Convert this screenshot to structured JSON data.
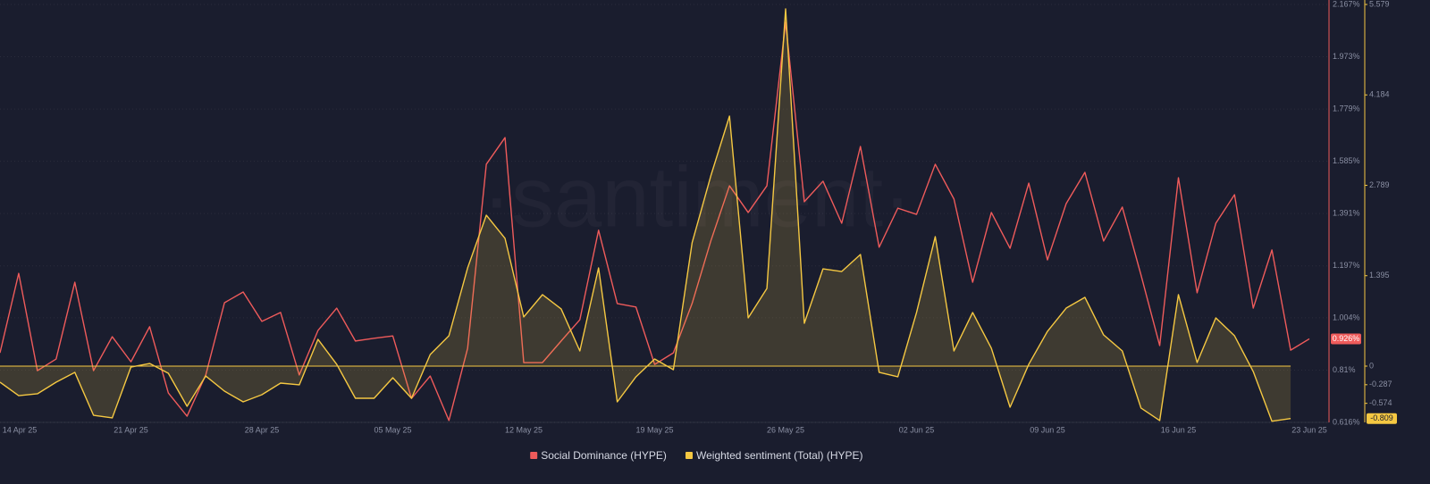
{
  "chart_data": {
    "type": "line",
    "watermark": "·santiment·",
    "x": [
      "14 Apr 25",
      "15 Apr 25",
      "16 Apr 25",
      "17 Apr 25",
      "18 Apr 25",
      "19 Apr 25",
      "20 Apr 25",
      "21 Apr 25",
      "22 Apr 25",
      "23 Apr 25",
      "24 Apr 25",
      "25 Apr 25",
      "26 Apr 25",
      "27 Apr 25",
      "28 Apr 25",
      "29 Apr 25",
      "30 Apr 25",
      "01 May 25",
      "02 May 25",
      "03 May 25",
      "04 May 25",
      "05 May 25",
      "06 May 25",
      "07 May 25",
      "08 May 25",
      "09 May 25",
      "10 May 25",
      "11 May 25",
      "12 May 25",
      "13 May 25",
      "14 May 25",
      "15 May 25",
      "16 May 25",
      "17 May 25",
      "18 May 25",
      "19 May 25",
      "20 May 25",
      "21 May 25",
      "22 May 25",
      "23 May 25",
      "24 May 25",
      "25 May 25",
      "26 May 25",
      "27 May 25",
      "28 May 25",
      "29 May 25",
      "30 May 25",
      "31 May 25",
      "01 Jun 25",
      "02 Jun 25",
      "03 Jun 25",
      "04 Jun 25",
      "05 Jun 25",
      "06 Jun 25",
      "07 Jun 25",
      "08 Jun 25",
      "09 Jun 25",
      "10 Jun 25",
      "11 Jun 25",
      "12 Jun 25",
      "13 Jun 25",
      "14 Jun 25",
      "15 Jun 25",
      "16 Jun 25",
      "17 Jun 25",
      "18 Jun 25",
      "19 Jun 25",
      "20 Jun 25",
      "21 Jun 25",
      "22 Jun 25",
      "23 Jun 25"
    ],
    "xticks": [
      "14 Apr 25",
      "21 Apr 25",
      "28 Apr 25",
      "05 May 25",
      "12 May 25",
      "19 May 25",
      "26 May 25",
      "02 Jun 25",
      "09 Jun 25",
      "16 Jun 25",
      "23 Jun 25"
    ],
    "series": [
      {
        "name": "Social Dominance (HYPE)",
        "color": "#ef5b5b",
        "end_label": "0.926%",
        "values": [
          0.874,
          1.169,
          0.808,
          0.851,
          1.136,
          0.808,
          0.934,
          0.841,
          0.971,
          0.725,
          0.639,
          0.792,
          1.06,
          1.1,
          0.991,
          1.024,
          0.792,
          0.957,
          1.04,
          0.918,
          0.928,
          0.937,
          0.705,
          0.788,
          0.623,
          0.891,
          1.574,
          1.673,
          0.838,
          0.838,
          0.918,
          0.997,
          1.329,
          1.057,
          1.044,
          0.831,
          0.874,
          1.057,
          1.289,
          1.494,
          1.395,
          1.494,
          2.101,
          1.435,
          1.511,
          1.355,
          1.64,
          1.266,
          1.411,
          1.388,
          1.574,
          1.445,
          1.136,
          1.395,
          1.262,
          1.504,
          1.219,
          1.428,
          1.544,
          1.289,
          1.415,
          1.163,
          0.901,
          1.524,
          1.097,
          1.355,
          1.461,
          1.04,
          1.256,
          0.884,
          0.926
        ]
      },
      {
        "name": "Weighted sentiment (Total) (HYPE)",
        "color": "#f5c842",
        "axis": "y2",
        "area": true,
        "end_label": "-0.809",
        "values": [
          -0.248,
          -0.455,
          -0.427,
          -0.248,
          -0.096,
          -0.758,
          -0.799,
          -0.014,
          0.041,
          -0.11,
          -0.62,
          -0.152,
          -0.386,
          -0.551,
          -0.441,
          -0.262,
          -0.289,
          0.413,
          0.028,
          -0.496,
          -0.496,
          -0.179,
          -0.496,
          0.179,
          0.468,
          1.515,
          2.328,
          1.97,
          0.758,
          1.102,
          0.882,
          0.234,
          1.515,
          -0.551,
          -0.165,
          0.11,
          -0.055,
          1.901,
          2.934,
          3.857,
          0.744,
          1.198,
          5.51,
          0.661,
          1.501,
          1.46,
          1.722,
          -0.096,
          -0.165,
          0.827,
          1.997,
          0.234,
          0.827,
          0.276,
          -0.634,
          0.028,
          0.537,
          0.895,
          1.061,
          0.482,
          0.234,
          -0.647,
          -0.84,
          1.102,
          0.055,
          0.744,
          0.468,
          -0.083,
          -0.85,
          -0.809,
          null
        ]
      }
    ],
    "ylim": [
      0.616,
      2.167
    ],
    "yticks": [
      {
        "value": 0.616,
        "label": "0.616%"
      },
      {
        "value": 0.81,
        "label": "0.81%"
      },
      {
        "value": 1.004,
        "label": "1.004%"
      },
      {
        "value": 1.197,
        "label": "1.197%"
      },
      {
        "value": 1.391,
        "label": "1.391%"
      },
      {
        "value": 1.585,
        "label": "1.585%"
      },
      {
        "value": 1.779,
        "label": "1.779%"
      },
      {
        "value": 1.973,
        "label": "1.973%"
      },
      {
        "value": 2.167,
        "label": "2.167%"
      }
    ],
    "y2lim": [
      -0.868,
      5.579
    ],
    "y2ticks": [
      5.579,
      4.184,
      2.789,
      1.395,
      0,
      -0.287,
      -0.574
    ],
    "grid": true,
    "legend": "bottom"
  }
}
